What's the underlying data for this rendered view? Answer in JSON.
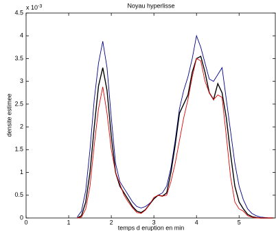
{
  "chart_data": {
    "type": "line",
    "title": "Noyau hyperlisse",
    "x_label": "temps d eruption en min",
    "y_label": "densite estimee",
    "y_multiplier": {
      "base": "x 10",
      "exponent": "-3"
    },
    "x": [
      1.2,
      1.3,
      1.4,
      1.5,
      1.6,
      1.7,
      1.8,
      1.9,
      2.0,
      2.1,
      2.2,
      2.3,
      2.4,
      2.5,
      2.6,
      2.7,
      2.8,
      2.9,
      3.0,
      3.1,
      3.2,
      3.3,
      3.4,
      3.5,
      3.6,
      3.7,
      3.8,
      3.9,
      4.0,
      4.1,
      4.2,
      4.3,
      4.4,
      4.5,
      4.6,
      4.7,
      4.8,
      4.9,
      5.0,
      5.1,
      5.2,
      5.3,
      5.4,
      5.5,
      5.6,
      5.7,
      5.8
    ],
    "series": [
      {
        "color": "#00008b",
        "values": [
          0.02,
          0.15,
          0.6,
          1.5,
          2.6,
          3.4,
          3.88,
          3.3,
          2.2,
          1.2,
          0.8,
          0.65,
          0.5,
          0.35,
          0.25,
          0.22,
          0.25,
          0.32,
          0.42,
          0.5,
          0.55,
          0.7,
          1.1,
          1.7,
          2.4,
          2.8,
          3.1,
          3.5,
          4.0,
          3.75,
          3.4,
          3.05,
          3.0,
          3.15,
          3.3,
          2.6,
          1.9,
          1.2,
          0.7,
          0.4,
          0.2,
          0.1,
          0.05,
          0.02,
          0.01,
          0,
          0
        ]
      },
      {
        "color": "#000000",
        "values": [
          0,
          0.05,
          0.35,
          1.0,
          2.0,
          2.9,
          3.3,
          2.8,
          1.8,
          1.0,
          0.7,
          0.55,
          0.4,
          0.25,
          0.15,
          0.12,
          0.18,
          0.3,
          0.42,
          0.5,
          0.48,
          0.55,
          1.0,
          1.6,
          2.3,
          2.5,
          2.7,
          3.2,
          3.5,
          3.55,
          3.2,
          2.75,
          2.6,
          2.95,
          2.75,
          2.2,
          1.4,
          0.7,
          0.35,
          0.2,
          0.08,
          0.03,
          0.01,
          0,
          0,
          0,
          0
        ]
      },
      {
        "color": "#e00000",
        "values": [
          0,
          0.02,
          0.2,
          0.7,
          1.6,
          2.4,
          2.88,
          2.3,
          1.5,
          1.0,
          0.75,
          0.5,
          0.35,
          0.22,
          0.12,
          0.1,
          0.17,
          0.3,
          0.45,
          0.5,
          0.48,
          0.5,
          0.8,
          1.2,
          1.7,
          2.2,
          2.6,
          3.1,
          3.5,
          3.45,
          3.0,
          2.75,
          2.6,
          2.7,
          2.65,
          1.8,
          0.9,
          0.35,
          0.2,
          0.15,
          0.05,
          0.02,
          0,
          0,
          0,
          0,
          0
        ]
      }
    ],
    "xlim": [
      0,
      5.85
    ],
    "xticks": [
      0,
      1,
      2,
      3,
      4,
      5
    ],
    "ylim": [
      0,
      4.5
    ],
    "yticks": [
      0,
      0.5,
      1,
      1.5,
      2,
      2.5,
      3,
      3.5,
      4,
      4.5
    ]
  }
}
